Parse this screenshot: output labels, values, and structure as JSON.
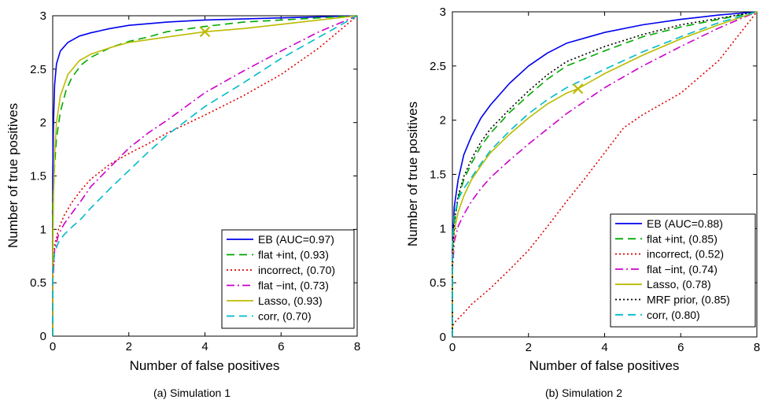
{
  "chart_data": [
    {
      "type": "line",
      "caption": "(a) Simulation 1",
      "xlabel": "Number of false positives",
      "ylabel": "Number of true positives",
      "xlim": [
        0,
        8
      ],
      "ylim": [
        0,
        3
      ],
      "xticks": [
        0,
        2,
        4,
        6,
        8
      ],
      "yticks": [
        0,
        0.5,
        1,
        1.5,
        2,
        2.5,
        3
      ],
      "legend_position": "bottom-right",
      "series": [
        {
          "name": "EB (AUC=0.97)",
          "color": "#0000ee",
          "dash": "solid",
          "points": [
            [
              0,
              0
            ],
            [
              0,
              1.5
            ],
            [
              0.02,
              2.0
            ],
            [
              0.05,
              2.35
            ],
            [
              0.1,
              2.55
            ],
            [
              0.2,
              2.67
            ],
            [
              0.4,
              2.75
            ],
            [
              0.7,
              2.81
            ],
            [
              1,
              2.84
            ],
            [
              1.5,
              2.88
            ],
            [
              2,
              2.91
            ],
            [
              3,
              2.94
            ],
            [
              4,
              2.96
            ],
            [
              5,
              2.97
            ],
            [
              6,
              2.98
            ],
            [
              7,
              2.99
            ],
            [
              8,
              3
            ]
          ]
        },
        {
          "name": "flat +int, (0.93)",
          "color": "#00aa00",
          "dash": "dashed",
          "points": [
            [
              0,
              0
            ],
            [
              0,
              1.2
            ],
            [
              0.05,
              1.6
            ],
            [
              0.1,
              1.85
            ],
            [
              0.2,
              2.1
            ],
            [
              0.35,
              2.3
            ],
            [
              0.5,
              2.42
            ],
            [
              0.75,
              2.54
            ],
            [
              1,
              2.61
            ],
            [
              1.5,
              2.7
            ],
            [
              2,
              2.76
            ],
            [
              2.5,
              2.8
            ],
            [
              3,
              2.85
            ],
            [
              4,
              2.9
            ],
            [
              5,
              2.94
            ],
            [
              6,
              2.96
            ],
            [
              7,
              2.98
            ],
            [
              8,
              3
            ]
          ]
        },
        {
          "name": "incorrect, (0.70)",
          "color": "#dd0000",
          "dash": "dotted",
          "points": [
            [
              0,
              0
            ],
            [
              0,
              0.5
            ],
            [
              0.05,
              0.85
            ],
            [
              0.15,
              1.0
            ],
            [
              0.3,
              1.13
            ],
            [
              0.5,
              1.25
            ],
            [
              0.75,
              1.37
            ],
            [
              1,
              1.47
            ],
            [
              1.5,
              1.61
            ],
            [
              2,
              1.71
            ],
            [
              2.5,
              1.8
            ],
            [
              3,
              1.9
            ],
            [
              4,
              2.07
            ],
            [
              5,
              2.25
            ],
            [
              6,
              2.45
            ],
            [
              7,
              2.7
            ],
            [
              8,
              3
            ]
          ]
        },
        {
          "name": "flat −int, (0.73)",
          "color": "#cc00cc",
          "dash": "dashdot",
          "points": [
            [
              0,
              0
            ],
            [
              0,
              0.5
            ],
            [
              0.05,
              0.8
            ],
            [
              0.15,
              0.95
            ],
            [
              0.3,
              1.05
            ],
            [
              0.5,
              1.15
            ],
            [
              0.75,
              1.27
            ],
            [
              1,
              1.4
            ],
            [
              1.5,
              1.58
            ],
            [
              2,
              1.76
            ],
            [
              2.5,
              1.9
            ],
            [
              3,
              2.02
            ],
            [
              4,
              2.28
            ],
            [
              5,
              2.48
            ],
            [
              6,
              2.67
            ],
            [
              7,
              2.85
            ],
            [
              8,
              3
            ]
          ]
        },
        {
          "name": "Lasso, (0.93)",
          "color": "#bbbb00",
          "dash": "solid",
          "points": [
            [
              0,
              0
            ],
            [
              0,
              0.7
            ],
            [
              0.02,
              1.3
            ],
            [
              0.05,
              1.7
            ],
            [
              0.1,
              2.0
            ],
            [
              0.2,
              2.25
            ],
            [
              0.4,
              2.45
            ],
            [
              0.7,
              2.58
            ],
            [
              1,
              2.64
            ],
            [
              1.5,
              2.7
            ],
            [
              2,
              2.75
            ],
            [
              3,
              2.8
            ],
            [
              4,
              2.85
            ],
            [
              5,
              2.88
            ],
            [
              6,
              2.92
            ],
            [
              7,
              2.96
            ],
            [
              8,
              3
            ]
          ]
        },
        {
          "name": "corr, (0.70)",
          "color": "#00bbcc",
          "dash": "dashed",
          "points": [
            [
              0,
              0
            ],
            [
              0,
              0.6
            ],
            [
              0.05,
              0.78
            ],
            [
              0.15,
              0.88
            ],
            [
              0.3,
              0.95
            ],
            [
              0.5,
              1.02
            ],
            [
              0.75,
              1.1
            ],
            [
              1,
              1.2
            ],
            [
              1.5,
              1.38
            ],
            [
              2,
              1.55
            ],
            [
              2.5,
              1.72
            ],
            [
              3,
              1.88
            ],
            [
              4,
              2.15
            ],
            [
              5,
              2.37
            ],
            [
              6,
              2.6
            ],
            [
              7,
              2.8
            ],
            [
              8,
              3
            ]
          ]
        }
      ],
      "marker": {
        "x": 4,
        "y": 2.85,
        "shape": "x",
        "color": "#bbbb00"
      }
    },
    {
      "type": "line",
      "caption": "(b) Simulation 2",
      "xlabel": "Number of false positives",
      "ylabel": "Number of true positives",
      "xlim": [
        0,
        8
      ],
      "ylim": [
        0,
        3
      ],
      "xticks": [
        0,
        2,
        4,
        6,
        8
      ],
      "yticks": [
        0,
        0.5,
        1,
        1.5,
        2,
        2.5,
        3
      ],
      "legend_position": "bottom-right",
      "series": [
        {
          "name": "EB (AUC=0.88)",
          "color": "#0000ee",
          "dash": "solid",
          "points": [
            [
              0,
              0
            ],
            [
              0,
              0.8
            ],
            [
              0.05,
              1.2
            ],
            [
              0.15,
              1.45
            ],
            [
              0.3,
              1.68
            ],
            [
              0.5,
              1.85
            ],
            [
              0.75,
              2.02
            ],
            [
              1,
              2.14
            ],
            [
              1.5,
              2.34
            ],
            [
              2,
              2.5
            ],
            [
              2.5,
              2.62
            ],
            [
              3,
              2.71
            ],
            [
              4,
              2.81
            ],
            [
              5,
              2.88
            ],
            [
              6,
              2.93
            ],
            [
              7,
              2.97
            ],
            [
              8,
              3
            ]
          ]
        },
        {
          "name": "flat +int, (0.85)",
          "color": "#00aa00",
          "dash": "dashed",
          "points": [
            [
              0,
              0
            ],
            [
              0,
              0.7
            ],
            [
              0.05,
              1.05
            ],
            [
              0.15,
              1.28
            ],
            [
              0.3,
              1.45
            ],
            [
              0.5,
              1.6
            ],
            [
              0.75,
              1.76
            ],
            [
              1,
              1.88
            ],
            [
              1.5,
              2.07
            ],
            [
              2,
              2.23
            ],
            [
              2.5,
              2.38
            ],
            [
              3,
              2.5
            ],
            [
              4,
              2.64
            ],
            [
              5,
              2.77
            ],
            [
              6,
              2.86
            ],
            [
              7,
              2.93
            ],
            [
              8,
              3
            ]
          ]
        },
        {
          "name": "incorrect, (0.52)",
          "color": "#dd0000",
          "dash": "dotted",
          "points": [
            [
              0,
              0
            ],
            [
              0,
              0.1
            ],
            [
              0.1,
              0.15
            ],
            [
              0.3,
              0.22
            ],
            [
              0.5,
              0.3
            ],
            [
              1,
              0.45
            ],
            [
              1.5,
              0.62
            ],
            [
              2,
              0.8
            ],
            [
              2.5,
              1.02
            ],
            [
              3,
              1.25
            ],
            [
              3.5,
              1.47
            ],
            [
              4,
              1.7
            ],
            [
              4.5,
              1.93
            ],
            [
              5,
              2.05
            ],
            [
              6,
              2.25
            ],
            [
              7,
              2.55
            ],
            [
              8,
              3
            ]
          ]
        },
        {
          "name": "flat −int, (0.74)",
          "color": "#cc00cc",
          "dash": "dashdot",
          "points": [
            [
              0,
              0
            ],
            [
              0,
              0.6
            ],
            [
              0.05,
              0.88
            ],
            [
              0.15,
              1.02
            ],
            [
              0.3,
              1.13
            ],
            [
              0.5,
              1.25
            ],
            [
              0.75,
              1.37
            ],
            [
              1,
              1.47
            ],
            [
              1.5,
              1.63
            ],
            [
              2,
              1.78
            ],
            [
              2.5,
              1.92
            ],
            [
              3,
              2.06
            ],
            [
              4,
              2.3
            ],
            [
              5,
              2.5
            ],
            [
              6,
              2.68
            ],
            [
              7,
              2.85
            ],
            [
              8,
              3
            ]
          ]
        },
        {
          "name": "Lasso, (0.78)",
          "color": "#bbbb00",
          "dash": "solid",
          "points": [
            [
              0,
              0
            ],
            [
              0,
              0.7
            ],
            [
              0.05,
              0.98
            ],
            [
              0.15,
              1.15
            ],
            [
              0.3,
              1.3
            ],
            [
              0.5,
              1.45
            ],
            [
              0.75,
              1.58
            ],
            [
              1,
              1.7
            ],
            [
              1.5,
              1.87
            ],
            [
              2,
              2.02
            ],
            [
              2.5,
              2.15
            ],
            [
              3,
              2.25
            ],
            [
              3.3,
              2.29
            ],
            [
              4,
              2.43
            ],
            [
              5,
              2.6
            ],
            [
              6,
              2.75
            ],
            [
              7,
              2.88
            ],
            [
              8,
              3
            ]
          ]
        },
        {
          "name": "MRF prior, (0.85)",
          "color": "#000000",
          "dash": "dotted",
          "points": [
            [
              0,
              0
            ],
            [
              0,
              0.7
            ],
            [
              0.05,
              1.05
            ],
            [
              0.15,
              1.3
            ],
            [
              0.3,
              1.48
            ],
            [
              0.5,
              1.64
            ],
            [
              0.75,
              1.8
            ],
            [
              1,
              1.92
            ],
            [
              1.5,
              2.1
            ],
            [
              2,
              2.27
            ],
            [
              2.5,
              2.42
            ],
            [
              3,
              2.54
            ],
            [
              4,
              2.68
            ],
            [
              5,
              2.79
            ],
            [
              6,
              2.88
            ],
            [
              7,
              2.94
            ],
            [
              8,
              3
            ]
          ]
        },
        {
          "name": "corr, (0.80)",
          "color": "#00bbcc",
          "dash": "dashed",
          "points": [
            [
              0,
              0
            ],
            [
              0,
              0.85
            ],
            [
              0.05,
              1.12
            ],
            [
              0.15,
              1.27
            ],
            [
              0.3,
              1.37
            ],
            [
              0.5,
              1.47
            ],
            [
              0.75,
              1.6
            ],
            [
              1,
              1.72
            ],
            [
              1.5,
              1.9
            ],
            [
              2,
              2.06
            ],
            [
              2.5,
              2.19
            ],
            [
              3,
              2.3
            ],
            [
              4,
              2.47
            ],
            [
              5,
              2.63
            ],
            [
              6,
              2.77
            ],
            [
              7,
              2.9
            ],
            [
              8,
              3
            ]
          ]
        }
      ],
      "marker": {
        "x": 3.3,
        "y": 2.29,
        "shape": "x",
        "color": "#bbbb00"
      }
    }
  ]
}
